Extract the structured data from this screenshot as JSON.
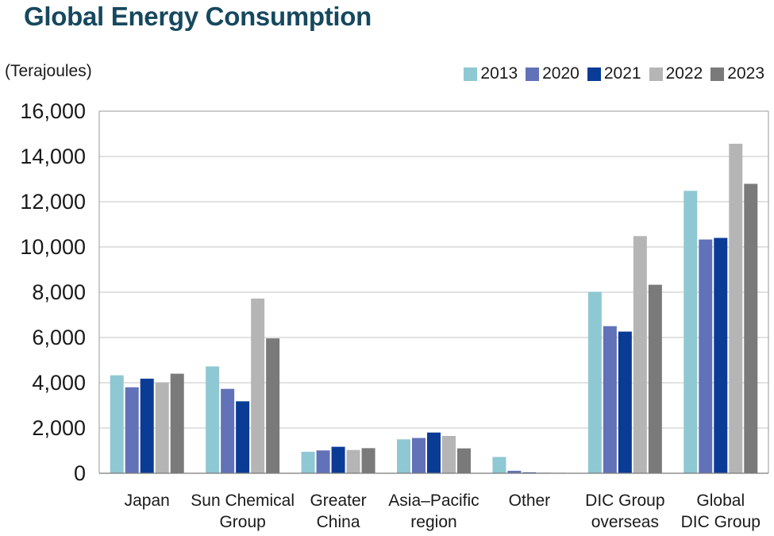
{
  "title": "Global Energy Consumption",
  "chart_data": {
    "type": "bar",
    "title": "Global Energy Consumption",
    "ylabel": "(Terajoules)",
    "xlabel": "",
    "ylim": [
      0,
      16000
    ],
    "yticks": [
      0,
      2000,
      4000,
      6000,
      8000,
      10000,
      12000,
      14000,
      16000
    ],
    "ytick_labels": [
      "0",
      "2,000",
      "4,000",
      "6,000",
      "8,000",
      "10,000",
      "12,000",
      "14,000",
      "16,000"
    ],
    "grid": true,
    "legend_position": "top-right",
    "categories": [
      [
        "Japan"
      ],
      [
        "Sun Chemical",
        "Group"
      ],
      [
        "Greater",
        "China"
      ],
      [
        "Asia–Pacific",
        "region"
      ],
      [
        "Other"
      ],
      [
        "DIC Group",
        "overseas"
      ],
      [
        "Global",
        "DIC Group"
      ]
    ],
    "series": [
      {
        "name": "2013",
        "color": "#8ec8d3",
        "values": [
          4330,
          4720,
          950,
          1500,
          720,
          8020,
          12480
        ]
      },
      {
        "name": "2020",
        "color": "#6272b8",
        "values": [
          3800,
          3730,
          1010,
          1560,
          110,
          6500,
          10330
        ]
      },
      {
        "name": "2021",
        "color": "#0a3c96",
        "values": [
          4180,
          3180,
          1170,
          1800,
          40,
          6260,
          10400
        ]
      },
      {
        "name": "2022",
        "color": "#b5b5b5",
        "values": [
          4020,
          7720,
          1030,
          1650,
          30,
          10480,
          14560
        ]
      },
      {
        "name": "2023",
        "color": "#7a7a7a",
        "values": [
          4400,
          5960,
          1110,
          1100,
          20,
          8330,
          12790
        ]
      }
    ]
  }
}
